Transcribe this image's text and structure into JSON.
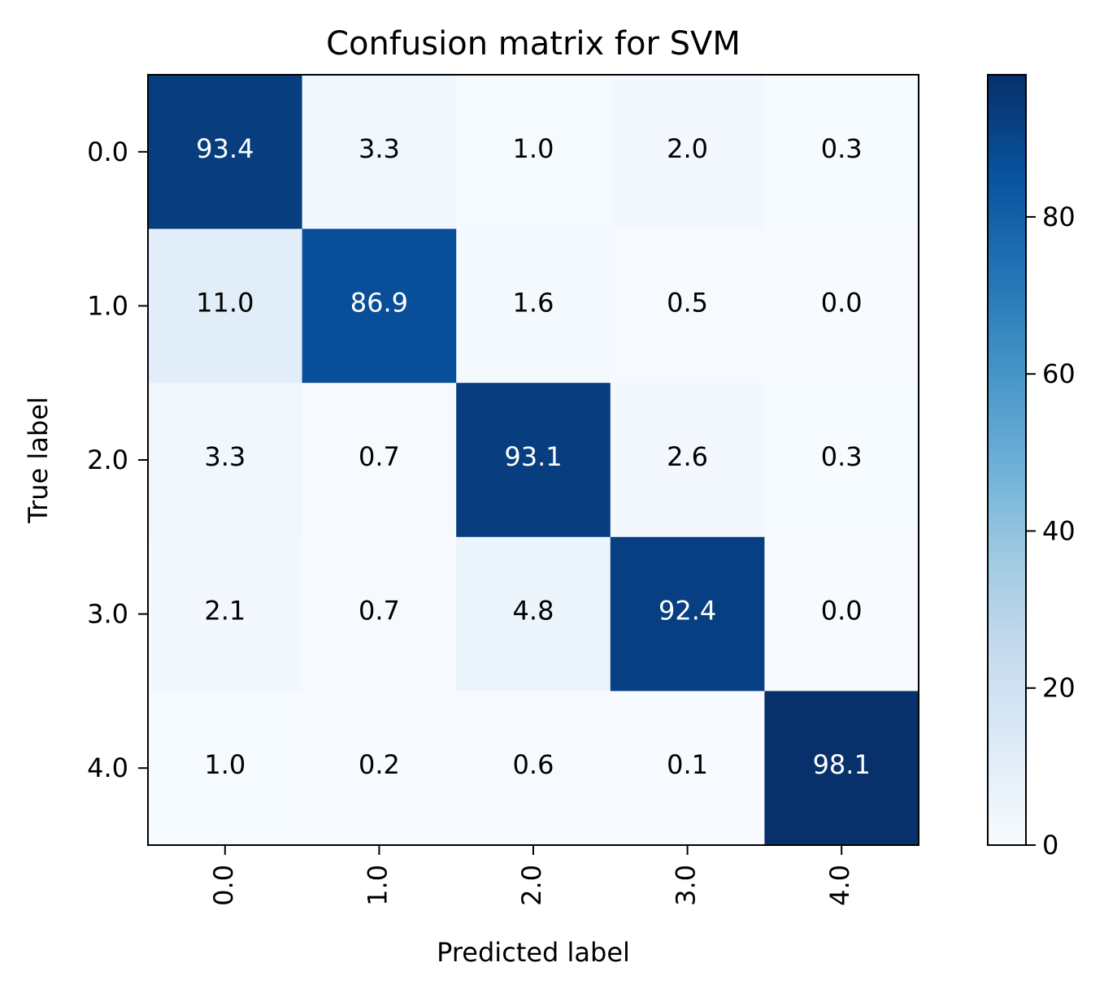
{
  "chart_data": {
    "type": "heatmap",
    "title": "Confusion matrix for SVM",
    "xlabel": "Predicted label",
    "ylabel": "True label",
    "x_categories": [
      "0.0",
      "1.0",
      "2.0",
      "3.0",
      "4.0"
    ],
    "y_categories": [
      "0.0",
      "1.0",
      "2.0",
      "3.0",
      "4.0"
    ],
    "matrix": [
      [
        93.4,
        3.3,
        1.0,
        2.0,
        0.3
      ],
      [
        11.0,
        86.9,
        1.6,
        0.5,
        0.0
      ],
      [
        3.3,
        0.7,
        93.1,
        2.6,
        0.3
      ],
      [
        2.1,
        0.7,
        4.8,
        92.4,
        0.0
      ],
      [
        1.0,
        0.2,
        0.6,
        0.1,
        98.1
      ]
    ],
    "colormap": "Blues",
    "colorbar": {
      "range": [
        0,
        98.1
      ],
      "ticks": [
        0,
        20,
        40,
        60,
        80
      ]
    },
    "x_tick_rotation": "vertical",
    "grid": false
  }
}
